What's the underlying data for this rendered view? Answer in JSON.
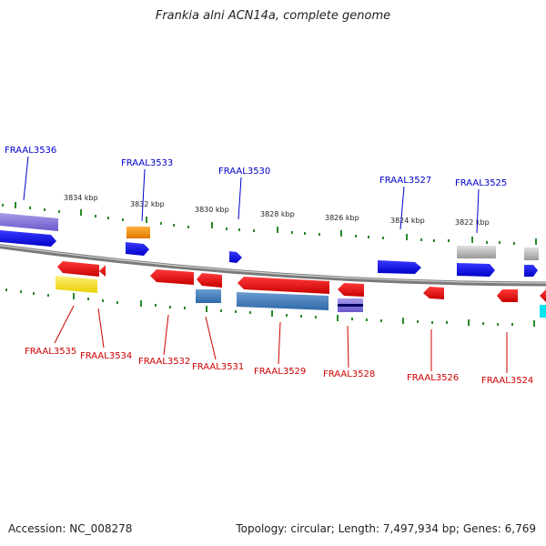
{
  "header": {
    "title": "Frankia alni ACN14a, complete genome"
  },
  "footer": {
    "accession": "Accession: NC_008278",
    "stats": "Topology: circular; Length: 7,497,934 bp; Genes: 6,769"
  },
  "scale_labels": [
    "3834 kbp",
    "3832 kbp",
    "3830 kbp",
    "3828 kbp",
    "3826 kbp",
    "3824 kbp",
    "3822 kbp"
  ],
  "gene_labels_top": [
    "FRAAL3536",
    "FRAAL3533",
    "FRAAL3530",
    "FRAAL3527",
    "FRAAL3525"
  ],
  "gene_labels_bottom": [
    "FRAAL3535",
    "FRAAL3534",
    "FRAAL3532",
    "FRAAL3531",
    "FRAAL3529",
    "FRAAL3528",
    "FRAAL3526",
    "FRAAL3524"
  ],
  "colors": {
    "forward_label": "#0000cc",
    "reverse_label": "#cc0000",
    "forward_gene": "#0000ee",
    "reverse_gene": "#ee0000",
    "backbone": "#7a7a7a",
    "tick": "#2a8a2a"
  }
}
